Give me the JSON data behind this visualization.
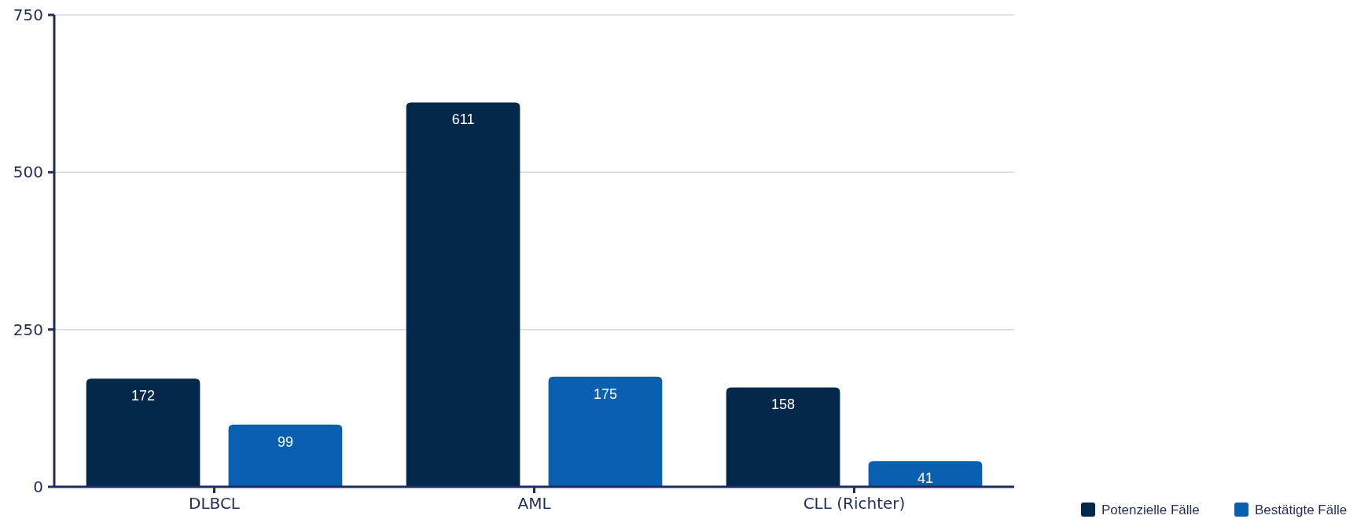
{
  "chart_data": {
    "type": "bar",
    "categories": [
      "DLBCL",
      "AML",
      "CLL (Richter)"
    ],
    "series": [
      {
        "name": "Potenzielle Fälle",
        "color": "#03284c",
        "values": [
          172,
          611,
          158
        ]
      },
      {
        "name": "Bestätigte Fälle",
        "color": "#0a60b0",
        "values": [
          99,
          175,
          41
        ]
      }
    ],
    "ylim": [
      0,
      750
    ],
    "yticks": [
      0,
      250,
      500,
      750
    ],
    "grid": "y",
    "legend": "bottom right",
    "data_labels": true
  }
}
